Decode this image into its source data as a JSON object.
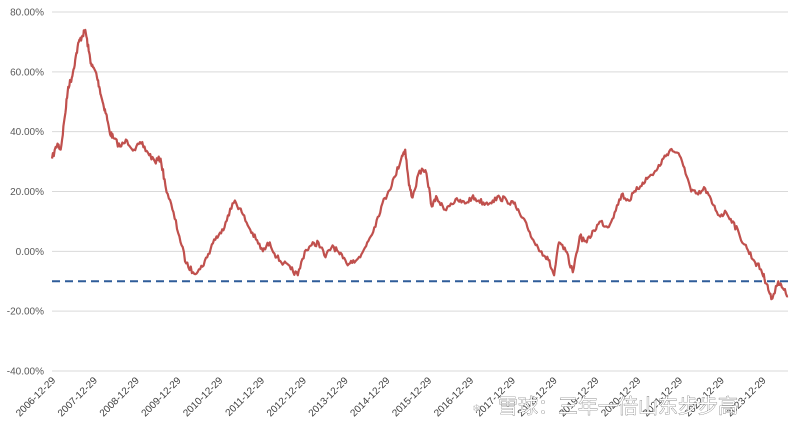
{
  "chart_data": {
    "type": "line",
    "title": "",
    "xlabel": "",
    "ylabel": "",
    "ylim": [
      -0.4,
      0.8
    ],
    "y_ticks": [
      "80.00%",
      "60.00%",
      "40.00%",
      "20.00%",
      "0.00%",
      "-20.00%",
      "-40.00%"
    ],
    "y_tick_values": [
      0.8,
      0.6,
      0.4,
      0.2,
      0.0,
      -0.2,
      -0.4
    ],
    "x_tick_labels": [
      "2006-12-29",
      "2007-12-29",
      "2008-12-29",
      "2009-12-29",
      "2010-12-29",
      "2011-12-29",
      "2012-12-29",
      "2013-12-29",
      "2014-12-29",
      "2015-12-29",
      "2016-12-29",
      "2017-12-29",
      "2018-12-29",
      "2019-12-29",
      "2020-12-29",
      "2021-12-29",
      "2022-12-29",
      "2023-12-29"
    ],
    "xlim": [
      "2006-12-29",
      "2024-08-08"
    ],
    "grid": true,
    "legend": "none",
    "series": [
      {
        "color": "#c0504d",
        "x": [
          "2006-12-29",
          "2007-02-15",
          "2007-03-15",
          "2007-04-20",
          "2007-05-20",
          "2007-06-20",
          "2007-07-20",
          "2007-08-20",
          "2007-09-20",
          "2007-10-16",
          "2007-11-15",
          "2007-12-10",
          "2008-01-15",
          "2008-02-15",
          "2008-03-15",
          "2008-04-15",
          "2008-05-15",
          "2008-06-15",
          "2008-08-15",
          "2008-10-15",
          "2008-12-15",
          "2009-02-15",
          "2009-04-15",
          "2009-06-15",
          "2009-08-04",
          "2009-09-15",
          "2009-11-15",
          "2010-01-15",
          "2010-03-15",
          "2010-05-15",
          "2010-07-15",
          "2010-09-15",
          "2010-11-15",
          "2011-01-15",
          "2011-03-15",
          "2011-05-15",
          "2011-07-15",
          "2011-09-15",
          "2011-11-15",
          "2012-01-15",
          "2012-03-15",
          "2012-05-15",
          "2012-07-15",
          "2012-09-15",
          "2012-11-15",
          "2013-01-15",
          "2013-03-15",
          "2013-05-15",
          "2013-07-15",
          "2013-09-15",
          "2013-11-15",
          "2014-01-15",
          "2014-03-15",
          "2014-05-15",
          "2014-07-15",
          "2014-09-15",
          "2014-11-15",
          "2015-01-15",
          "2015-03-15",
          "2015-05-15",
          "2015-06-12",
          "2015-07-15",
          "2015-08-15",
          "2015-10-15",
          "2015-12-15",
          "2016-01-30",
          "2016-03-15",
          "2016-05-15",
          "2016-07-15",
          "2016-09-15",
          "2016-11-15",
          "2017-01-15",
          "2017-03-15",
          "2017-05-15",
          "2017-07-15",
          "2017-09-15",
          "2017-11-15",
          "2018-01-15",
          "2018-03-15",
          "2018-05-15",
          "2018-07-15",
          "2018-09-15",
          "2018-11-15",
          "2019-01-03",
          "2019-02-15",
          "2019-04-15",
          "2019-06-15",
          "2019-08-15",
          "2019-10-15",
          "2019-12-15",
          "2020-02-15",
          "2020-04-15",
          "2020-06-15",
          "2020-08-15",
          "2020-10-15",
          "2020-12-15",
          "2021-02-15",
          "2021-04-15",
          "2021-06-15",
          "2021-08-15",
          "2021-10-15",
          "2021-12-15",
          "2022-02-15",
          "2022-04-15",
          "2022-06-15",
          "2022-08-15",
          "2022-10-15",
          "2022-12-15",
          "2023-02-15",
          "2023-04-15",
          "2023-06-15",
          "2023-08-15",
          "2023-10-15",
          "2023-12-15",
          "2024-01-15",
          "2024-02-05",
          "2024-03-15",
          "2024-05-15",
          "2024-06-15",
          "2024-08-08"
        ],
        "y": [
          0.31,
          0.36,
          0.34,
          0.45,
          0.55,
          0.58,
          0.64,
          0.7,
          0.72,
          0.74,
          0.67,
          0.62,
          0.6,
          0.55,
          0.5,
          0.46,
          0.4,
          0.38,
          0.35,
          0.37,
          0.34,
          0.36,
          0.33,
          0.3,
          0.31,
          0.22,
          0.14,
          0.05,
          -0.04,
          -0.07,
          -0.06,
          -0.02,
          0.04,
          0.06,
          0.12,
          0.17,
          0.13,
          0.08,
          0.04,
          0.0,
          0.03,
          -0.02,
          -0.04,
          -0.06,
          -0.08,
          0.0,
          0.02,
          0.03,
          -0.02,
          0.02,
          -0.01,
          -0.04,
          -0.03,
          -0.02,
          0.03,
          0.08,
          0.15,
          0.2,
          0.25,
          0.32,
          0.34,
          0.22,
          0.18,
          0.27,
          0.26,
          0.15,
          0.18,
          0.14,
          0.16,
          0.17,
          0.16,
          0.18,
          0.17,
          0.16,
          0.17,
          0.18,
          0.17,
          0.16,
          0.12,
          0.08,
          0.03,
          0.0,
          -0.03,
          -0.08,
          0.03,
          0.0,
          -0.07,
          0.05,
          0.03,
          0.07,
          0.1,
          0.08,
          0.13,
          0.19,
          0.17,
          0.2,
          0.23,
          0.25,
          0.27,
          0.31,
          0.34,
          0.33,
          0.28,
          0.2,
          0.19,
          0.21,
          0.16,
          0.12,
          0.13,
          0.1,
          0.05,
          0.01,
          -0.03,
          -0.06,
          -0.09,
          -0.11,
          -0.16,
          -0.1,
          -0.12,
          -0.15
        ]
      }
    ],
    "reference_line": {
      "value": -0.1,
      "color": "#2e5c99",
      "style": "dashed"
    }
  },
  "overlay_text": {
    "watermark_main": "雪球：三年一倍山东步步高"
  }
}
